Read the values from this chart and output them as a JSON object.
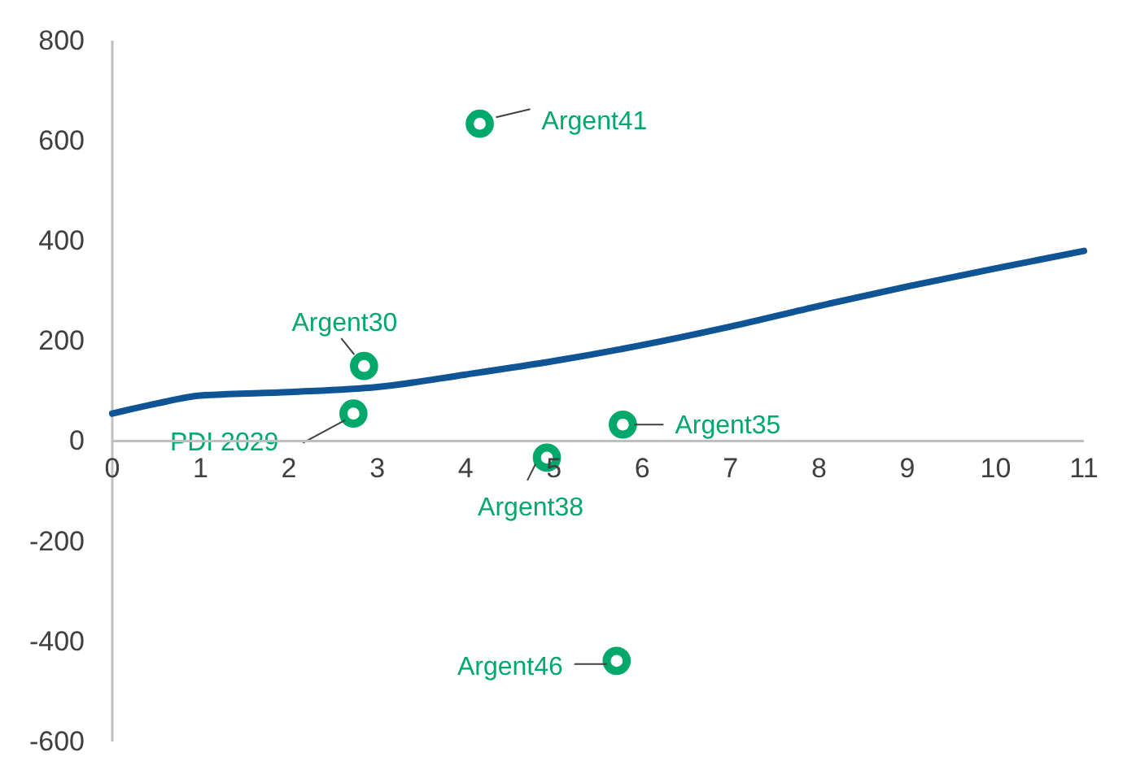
{
  "chart_data": {
    "type": "scatter",
    "xlim": [
      0,
      11
    ],
    "xticks": [
      0,
      1,
      2,
      3,
      4,
      5,
      6,
      7,
      8,
      9,
      10,
      11
    ],
    "ylim": [
      -600,
      800
    ],
    "yticks": [
      -600,
      -400,
      -200,
      0,
      200,
      400,
      600,
      800
    ],
    "grid": false,
    "series": [
      {
        "type": "line",
        "color": "#0f5596",
        "marker": "none",
        "x": [
          0,
          0.5,
          1,
          2,
          3,
          4,
          5,
          6,
          7,
          8,
          9,
          10,
          11
        ],
        "values": [
          55,
          75,
          91,
          98,
          108,
          133,
          160,
          192,
          229,
          270,
          309,
          345,
          380
        ]
      },
      {
        "color": "#00a86b",
        "marker": "circle",
        "x": [
          4.16,
          2.85,
          2.73,
          4.92,
          5.78,
          5.71
        ],
        "values": [
          634,
          150,
          55,
          -33,
          33,
          -439
        ]
      }
    ],
    "annotations": [
      {
        "text": "Argent41",
        "x": 4.16,
        "y": 634
      },
      {
        "text": "Argent30",
        "x": 2.85,
        "y": 150
      },
      {
        "text": "PDI 2029",
        "x": 2.73,
        "y": 55
      },
      {
        "text": "Argent38",
        "x": 4.92,
        "y": -33
      },
      {
        "text": "Argent35",
        "x": 5.78,
        "y": 33
      },
      {
        "text": "Argent46",
        "x": 5.71,
        "y": -439
      }
    ]
  }
}
